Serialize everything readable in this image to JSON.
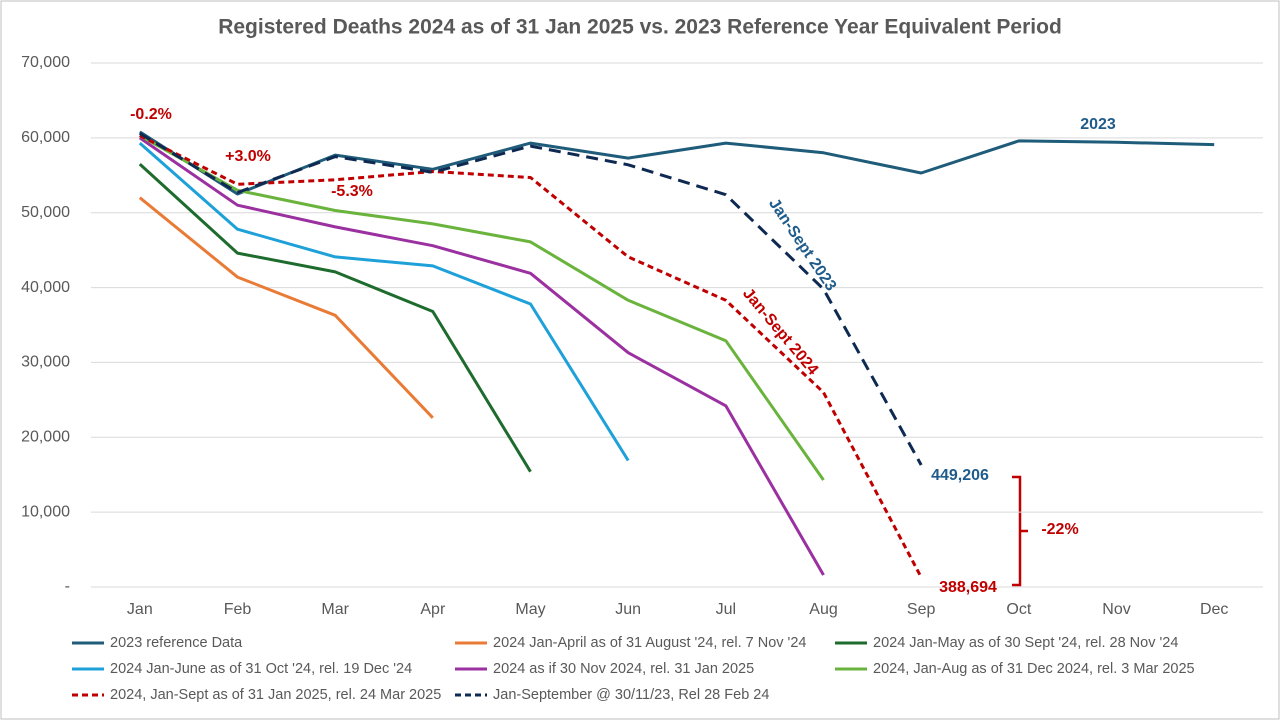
{
  "chart_data": {
    "type": "line",
    "title": "Registered Deaths 2024 as of 31 Jan 2025 vs. 2023 Reference Year Equivalent Period",
    "categories": [
      "Jan",
      "Feb",
      "Mar",
      "Apr",
      "May",
      "Jun",
      "Jul",
      "Aug",
      "Sep",
      "Oct",
      "Nov",
      "Dec"
    ],
    "ylim": [
      0,
      70000
    ],
    "yticks": [
      {
        "value": 0,
        "label": "-"
      },
      {
        "value": 10000,
        "label": "10,000"
      },
      {
        "value": 20000,
        "label": "20,000"
      },
      {
        "value": 30000,
        "label": "30,000"
      },
      {
        "value": 40000,
        "label": "40,000"
      },
      {
        "value": 50000,
        "label": "50,000"
      },
      {
        "value": 60000,
        "label": "60,000"
      },
      {
        "value": 70000,
        "label": "70,000"
      }
    ],
    "grid": true,
    "legend": "bottom",
    "series": [
      {
        "name": "2023 reference Data",
        "color": "#1f5c7a",
        "dashed": false,
        "values": [
          60800,
          52500,
          57700,
          55800,
          59300,
          57300,
          59300,
          58000,
          55300,
          59600,
          59400,
          59100
        ]
      },
      {
        "name": "2024 Jan-April as of 31 August '24, rel. 7 Nov '24",
        "color": "#e97b37",
        "dashed": false,
        "values": [
          52000,
          41400,
          36300,
          22600,
          null,
          null,
          null,
          null,
          null,
          null,
          null,
          null
        ]
      },
      {
        "name": "2024 Jan-May as of 30 Sept '24, rel. 28 Nov '24",
        "color": "#1e6b2e",
        "dashed": false,
        "values": [
          56500,
          44600,
          42100,
          36800,
          15400,
          null,
          null,
          null,
          null,
          null,
          null,
          null
        ]
      },
      {
        "name": "2024 Jan-June as of 31 Oct '24, rel. 19 Dec '24",
        "color": "#1ea0d9",
        "dashed": false,
        "values": [
          59300,
          47800,
          44100,
          42900,
          37800,
          16900,
          null,
          null,
          null,
          null,
          null,
          null
        ]
      },
      {
        "name": "2024 as if 30 Nov 2024, rel. 31 Jan 2025",
        "color": "#9b30a0",
        "dashed": false,
        "values": [
          60000,
          51000,
          48100,
          45600,
          41900,
          31300,
          24200,
          1600,
          null,
          null,
          null,
          null
        ]
      },
      {
        "name": "2024, Jan-Aug as of 31 Dec 2024, rel. 3 Mar 2025",
        "color": "#6ab33d",
        "dashed": false,
        "values": [
          60300,
          53000,
          50300,
          48500,
          46100,
          38300,
          32900,
          14300,
          null,
          null,
          null,
          null
        ]
      },
      {
        "name": "2024, Jan-Sept as of 31 Jan 2025, rel. 24 Mar 2025",
        "color": "#c00000",
        "dashed": true,
        "values": [
          60300,
          53800,
          54400,
          55500,
          54700,
          44100,
          38300,
          26000,
          1300,
          null,
          null,
          null
        ]
      },
      {
        "name": "Jan-September @ 30/11/23, Rel 28 Feb 24",
        "color": "#0e2a52",
        "dashed": true,
        "values": [
          60600,
          52700,
          57500,
          55400,
          58900,
          56400,
          52400,
          39800,
          16300,
          null,
          null,
          null
        ]
      }
    ],
    "annotations": [
      {
        "text": "-0.2%",
        "color": "#c00000"
      },
      {
        "text": "+3.0%",
        "color": "#c00000"
      },
      {
        "text": "-5.3%",
        "color": "#c00000"
      },
      {
        "text": "2023",
        "color": "#1f5c8b"
      },
      {
        "text": "Jan-Sept 2023",
        "color": "#1f5c8b"
      },
      {
        "text": "Jan-Sept 2024",
        "color": "#c00000"
      },
      {
        "text": "449,206",
        "color": "#1f5c8b"
      },
      {
        "text": "388,694",
        "color": "#c00000"
      },
      {
        "text": "-22%",
        "color": "#c00000"
      }
    ]
  }
}
